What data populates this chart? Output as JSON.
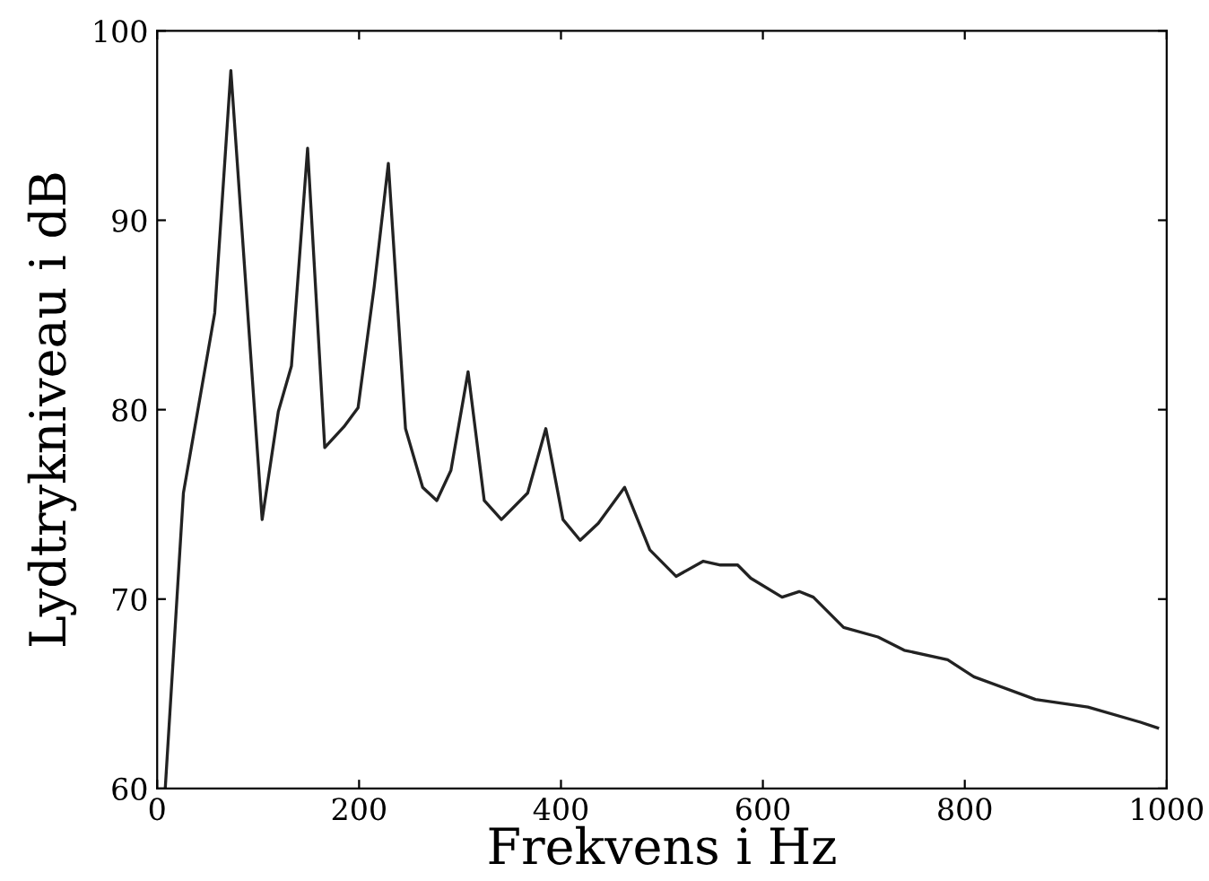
{
  "chart_data": {
    "type": "line",
    "xlabel": "Frekvens i Hz",
    "ylabel": "Lydtrykniveau i dB",
    "color": "#222222",
    "grid": false,
    "marker": "none",
    "line_style": "solid",
    "x": [
      8,
      26,
      57,
      73,
      104,
      120,
      133,
      149,
      166,
      185,
      199,
      215,
      229,
      246,
      263,
      277,
      291,
      308,
      324,
      341,
      367,
      385,
      402,
      419,
      437,
      463,
      488,
      514,
      541,
      558,
      575,
      588,
      619,
      636,
      650,
      680,
      714,
      740,
      783,
      809,
      870,
      922,
      974,
      991
    ],
    "values": [
      60,
      75.6,
      85.1,
      97.9,
      74.2,
      79.9,
      82.3,
      93.8,
      78,
      79.1,
      80.1,
      86.5,
      93,
      79,
      75.9,
      75.2,
      76.8,
      82,
      75.2,
      74.2,
      75.6,
      79,
      74.2,
      73.1,
      74,
      75.9,
      72.6,
      71.2,
      72,
      71.8,
      71.8,
      71.1,
      70.1,
      70.4,
      70.1,
      68.5,
      68,
      67.3,
      66.8,
      65.9,
      64.7,
      64.3,
      63.5,
      63.2
    ],
    "xlim": [
      0,
      1000
    ],
    "ylim": [
      60,
      100
    ],
    "xticks": [
      0,
      200,
      400,
      600,
      800,
      1000
    ],
    "yticks": [
      60,
      70,
      80,
      90,
      100
    ]
  }
}
